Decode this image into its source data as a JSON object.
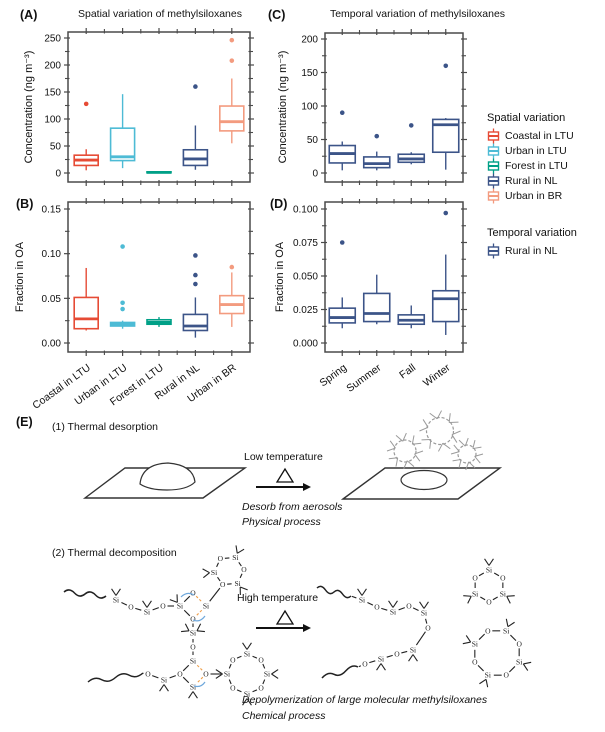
{
  "figure": {
    "panels": {
      "A": {
        "label": "(A)"
      },
      "B": {
        "label": "(B)"
      },
      "C": {
        "label": "(C)"
      },
      "D": {
        "label": "(D)"
      },
      "E": {
        "label": "(E)"
      }
    }
  },
  "legend": {
    "spatial": {
      "title": "Spatial variation",
      "items": [
        {
          "label": "Coastal in LTU",
          "color": "#e64b35"
        },
        {
          "label": "Urban in LTU",
          "color": "#4dbbd5"
        },
        {
          "label": "Forest in LTU",
          "color": "#00a087"
        },
        {
          "label": "Rural in NL",
          "color": "#3c5488"
        },
        {
          "label": "Urban in BR",
          "color": "#f39b7f"
        }
      ]
    },
    "temporal": {
      "title": "Temporal variation",
      "items": [
        {
          "label": "Rural in NL",
          "color": "#3c5488"
        }
      ]
    }
  },
  "chart_data": [
    {
      "id": "A",
      "type": "box",
      "title": "Spatial variation of methylsiloxanes",
      "ylabel": "Concentration (ng m⁻³)",
      "ylim": [
        0,
        250
      ],
      "ytick_values": [
        0,
        50,
        100,
        150,
        200,
        250
      ],
      "ytick_labels": [
        "0",
        "50",
        "100",
        "150",
        "200",
        "250"
      ],
      "categories": [
        "Coastal in LTU",
        "Urban in LTU",
        "Forest in LTU",
        "Rural in NL",
        "Urban in BR"
      ],
      "show_xlabels": false,
      "boxes": [
        {
          "whislo": 5,
          "q1": 14,
          "med": 24,
          "q3": 33,
          "whishi": 44,
          "outliers": [
            128
          ],
          "color": "#e64b35"
        },
        {
          "whislo": 9,
          "q1": 23,
          "med": 30,
          "q3": 83,
          "whishi": 146,
          "outliers": [],
          "color": "#4dbbd5"
        },
        {
          "whislo": 0.2,
          "q1": 0.5,
          "med": 1.2,
          "q3": 2.2,
          "whishi": 3,
          "outliers": [],
          "color": "#00a087"
        },
        {
          "whislo": 6,
          "q1": 14,
          "med": 26,
          "q3": 43,
          "whishi": 88,
          "outliers": [
            160
          ],
          "color": "#3c5488"
        },
        {
          "whislo": 55,
          "q1": 78,
          "med": 95,
          "q3": 124,
          "whishi": 175,
          "outliers": [
            208,
            246
          ],
          "color": "#f39b7f"
        }
      ]
    },
    {
      "id": "B",
      "type": "box",
      "ylabel": "Fraction in OA",
      "ylim": [
        0,
        0.15
      ],
      "ytick_values": [
        0,
        0.05,
        0.1,
        0.15
      ],
      "ytick_labels": [
        "0.00",
        "0.05",
        "0.10",
        "0.15"
      ],
      "categories": [
        "Coastal in LTU",
        "Urban in LTU",
        "Forest in LTU",
        "Rural in NL",
        "Urban in BR"
      ],
      "show_xlabels": true,
      "boxes": [
        {
          "whislo": 0.014,
          "q1": 0.016,
          "med": 0.027,
          "q3": 0.051,
          "whishi": 0.084,
          "outliers": [],
          "color": "#e64b35"
        },
        {
          "whislo": 0.016,
          "q1": 0.019,
          "med": 0.021,
          "q3": 0.023,
          "whishi": 0.025,
          "outliers": [
            0.038,
            0.045,
            0.108
          ],
          "color": "#4dbbd5"
        },
        {
          "whislo": 0.018,
          "q1": 0.021,
          "med": 0.023,
          "q3": 0.026,
          "whishi": 0.029,
          "outliers": [],
          "color": "#00a087"
        },
        {
          "whislo": 0.006,
          "q1": 0.014,
          "med": 0.019,
          "q3": 0.032,
          "whishi": 0.051,
          "outliers": [
            0.066,
            0.076,
            0.098
          ],
          "color": "#3c5488"
        },
        {
          "whislo": 0.018,
          "q1": 0.033,
          "med": 0.043,
          "q3": 0.053,
          "whishi": 0.079,
          "outliers": [
            0.085
          ],
          "color": "#f39b7f"
        }
      ]
    },
    {
      "id": "C",
      "type": "box",
      "title": "Temporal variation of methylsiloxanes",
      "ylabel": "Concentration (ng m⁻³)",
      "ylim": [
        0,
        200
      ],
      "ytick_values": [
        0,
        50,
        100,
        150,
        200
      ],
      "ytick_labels": [
        "0",
        "50",
        "100",
        "150",
        "200"
      ],
      "categories": [
        "Spring",
        "Summer",
        "Fall",
        "Winter"
      ],
      "show_xlabels": false,
      "boxes": [
        {
          "whislo": 4,
          "q1": 15,
          "med": 29,
          "q3": 41,
          "whishi": 47,
          "outliers": [
            90
          ],
          "color": "#3c5488"
        },
        {
          "whislo": 4,
          "q1": 8,
          "med": 14,
          "q3": 24,
          "whishi": 32,
          "outliers": [
            55
          ],
          "color": "#3c5488"
        },
        {
          "whislo": 13,
          "q1": 16,
          "med": 21,
          "q3": 28,
          "whishi": 31,
          "outliers": [
            71
          ],
          "color": "#3c5488"
        },
        {
          "whislo": 5,
          "q1": 31,
          "med": 72,
          "q3": 80,
          "whishi": 82,
          "outliers": [
            160
          ],
          "color": "#3c5488"
        }
      ]
    },
    {
      "id": "D",
      "type": "box",
      "ylabel": "Fraction in OA",
      "ylim": [
        0,
        0.1
      ],
      "ytick_values": [
        0,
        0.025,
        0.05,
        0.075,
        0.1
      ],
      "ytick_labels": [
        "0.000",
        "0.025",
        "0.050",
        "0.075",
        "0.100"
      ],
      "categories": [
        "Spring",
        "Summer",
        "Fall",
        "Winter"
      ],
      "show_xlabels": true,
      "boxes": [
        {
          "whislo": 0.011,
          "q1": 0.015,
          "med": 0.019,
          "q3": 0.026,
          "whishi": 0.034,
          "outliers": [
            0.075
          ],
          "color": "#3c5488"
        },
        {
          "whislo": 0.014,
          "q1": 0.016,
          "med": 0.022,
          "q3": 0.037,
          "whishi": 0.051,
          "outliers": [],
          "color": "#3c5488"
        },
        {
          "whislo": 0.011,
          "q1": 0.014,
          "med": 0.017,
          "q3": 0.021,
          "whishi": 0.028,
          "outliers": [],
          "color": "#3c5488"
        },
        {
          "whislo": 0.006,
          "q1": 0.016,
          "med": 0.033,
          "q3": 0.039,
          "whishi": 0.066,
          "outliers": [
            0.097
          ],
          "color": "#3c5488"
        }
      ]
    }
  ],
  "diagram": {
    "process1": {
      "title": "(1) Thermal desorption",
      "arrow_label": "Low temperature",
      "caption_line1": "Desorb from aerosols",
      "caption_line2": "Physical process"
    },
    "process2": {
      "title": "(2) Thermal decomposition",
      "arrow_label": "High temperature",
      "caption_line1": "Depolymerization of large molecular methylsiloxanes",
      "caption_line2": "Chemical process"
    },
    "atoms": {
      "si": "Si",
      "o": "O"
    }
  }
}
